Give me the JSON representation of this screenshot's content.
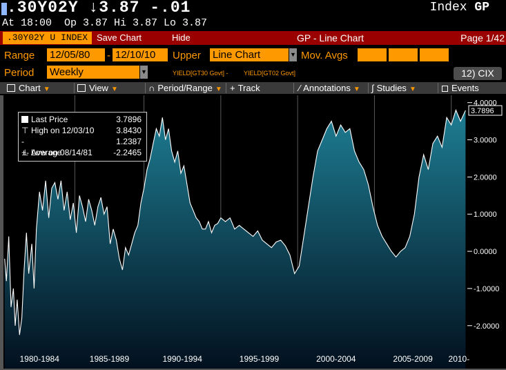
{
  "header": {
    "ticker_line": ".30Y02Y ↓3.87 -.01",
    "index_label": "Index",
    "function_code": "GP",
    "quote_line": "At 18:00  Op 3.87 Hi 3.87 Lo 3.87"
  },
  "bar": {
    "security_tab": ".30Y02Y U INDEX",
    "save_chart": "Save Chart",
    "hide": "Hide",
    "title": "GP - Line Chart",
    "page": "Page 1/42"
  },
  "controls": {
    "range_label": "Range",
    "range_start": "12/05/80",
    "range_dash": "-",
    "range_end": "12/10/10",
    "upper_label": "Upper",
    "upper_value": "Line Chart",
    "mov_avgs_label": "Mov. Avgs",
    "period_label": "Period",
    "period_value": "Weekly",
    "expression_1": "YIELD[GT30 Govt] -",
    "expression_2": "YIELD[GT02 Govt]",
    "cix": "12) CIX"
  },
  "toolbar": {
    "chart": "Chart",
    "view": "View",
    "period_range": "Period/Range",
    "track": "Track",
    "annotations": "Annotations",
    "studies": "Studies",
    "events": "Events"
  },
  "legend": {
    "last_price_label": "Last Price",
    "last_price_value": "3.7896",
    "high_label": "High on 12/03/10",
    "high_value": "3.8430",
    "average_label": "Average",
    "average_value": "1.2387",
    "low_label": "Low on 08/14/81",
    "low_value": "-2.2465"
  },
  "chart_data": {
    "type": "area",
    "y_tick_labels": [
      "4.0000",
      "3.0000",
      "2.0000",
      "1.0000",
      "0.0000",
      "-1.0000",
      "-2.0000"
    ],
    "y_ticks": [
      4,
      3,
      2,
      1,
      0,
      -1,
      -2
    ],
    "ylim": [
      -2.45,
      4.05
    ],
    "last_value_label": "3.7896",
    "x_tick_labels": [
      "1980-1984",
      "1985-1989",
      "1990-1994",
      "1995-1999",
      "2000-2004",
      "2005-2009",
      "2010-"
    ],
    "x_ticks": [
      1980.9,
      1985.5,
      1990.0,
      1995.0,
      2000.0,
      2005.0,
      2010.0
    ],
    "xlim": [
      1980.9,
      2011.0
    ],
    "fill_top_color": "#1e7d93",
    "fill_bottom_color": "#02101e",
    "line_color": "#ffffff",
    "x": [
      1980.93,
      1981.05,
      1981.2,
      1981.35,
      1981.5,
      1981.62,
      1981.75,
      1981.9,
      1982.05,
      1982.2,
      1982.35,
      1982.5,
      1982.7,
      1982.85,
      1983.0,
      1983.2,
      1983.4,
      1983.6,
      1983.8,
      1984.0,
      1984.2,
      1984.4,
      1984.6,
      1984.8,
      1985.0,
      1985.2,
      1985.4,
      1985.6,
      1985.8,
      1986.0,
      1986.2,
      1986.4,
      1986.6,
      1986.8,
      1987.0,
      1987.2,
      1987.4,
      1987.6,
      1987.8,
      1988.0,
      1988.2,
      1988.4,
      1988.6,
      1988.8,
      1989.0,
      1989.2,
      1989.4,
      1989.6,
      1989.8,
      1990.0,
      1990.2,
      1990.4,
      1990.6,
      1990.8,
      1991.0,
      1991.2,
      1991.4,
      1991.6,
      1991.8,
      1992.0,
      1992.2,
      1992.4,
      1992.6,
      1992.8,
      1993.0,
      1993.2,
      1993.4,
      1993.6,
      1993.8,
      1994.0,
      1994.2,
      1994.4,
      1994.6,
      1994.8,
      1995.0,
      1995.3,
      1995.6,
      1995.9,
      1996.2,
      1996.5,
      1996.8,
      1997.1,
      1997.4,
      1997.7,
      1998.0,
      1998.3,
      1998.6,
      1998.9,
      1999.2,
      1999.5,
      1999.8,
      2000.1,
      2000.4,
      2000.7,
      2001.0,
      2001.3,
      2001.6,
      2001.9,
      2002.2,
      2002.5,
      2002.8,
      2003.1,
      2003.4,
      2003.7,
      2004.0,
      2004.3,
      2004.6,
      2004.9,
      2005.2,
      2005.5,
      2005.8,
      2006.1,
      2006.4,
      2006.7,
      2007.0,
      2007.3,
      2007.6,
      2007.9,
      2008.2,
      2008.5,
      2008.8,
      2009.1,
      2009.4,
      2009.7,
      2010.0,
      2010.3,
      2010.6,
      2010.93
    ],
    "values": [
      -0.2,
      -0.8,
      0.4,
      -1.5,
      -1.0,
      -2.0,
      -1.3,
      -2.25,
      -1.8,
      -0.5,
      0.5,
      -0.6,
      0.2,
      -1.0,
      0.6,
      1.6,
      1.1,
      1.9,
      0.9,
      1.7,
      1.85,
      1.4,
      1.9,
      1.1,
      1.6,
      0.85,
      1.3,
      0.5,
      1.5,
      1.2,
      0.8,
      1.4,
      1.1,
      0.7,
      1.2,
      1.45,
      1.0,
      1.2,
      0.2,
      0.6,
      0.3,
      -0.2,
      -0.5,
      0.1,
      -0.1,
      0.2,
      0.5,
      0.7,
      1.3,
      1.7,
      2.2,
      2.5,
      2.9,
      3.3,
      3.1,
      3.6,
      3.0,
      3.3,
      2.7,
      2.4,
      2.7,
      2.1,
      2.3,
      1.8,
      1.3,
      1.1,
      0.9,
      0.8,
      0.6,
      0.6,
      0.8,
      0.5,
      0.7,
      0.75,
      0.9,
      0.8,
      0.9,
      0.6,
      0.7,
      0.6,
      0.5,
      0.4,
      0.55,
      0.3,
      0.2,
      0.1,
      0.25,
      0.3,
      0.15,
      -0.1,
      -0.6,
      -0.4,
      0.4,
      1.2,
      2.0,
      2.7,
      3.0,
      3.3,
      3.5,
      3.1,
      3.4,
      3.2,
      3.3,
      2.7,
      2.4,
      2.2,
      1.8,
      1.2,
      0.7,
      0.4,
      0.2,
      0.0,
      -0.15,
      0.0,
      0.1,
      0.4,
      1.0,
      2.0,
      2.6,
      2.2,
      2.9,
      3.1,
      2.8,
      3.6,
      3.4,
      3.8,
      3.5,
      3.79
    ]
  }
}
